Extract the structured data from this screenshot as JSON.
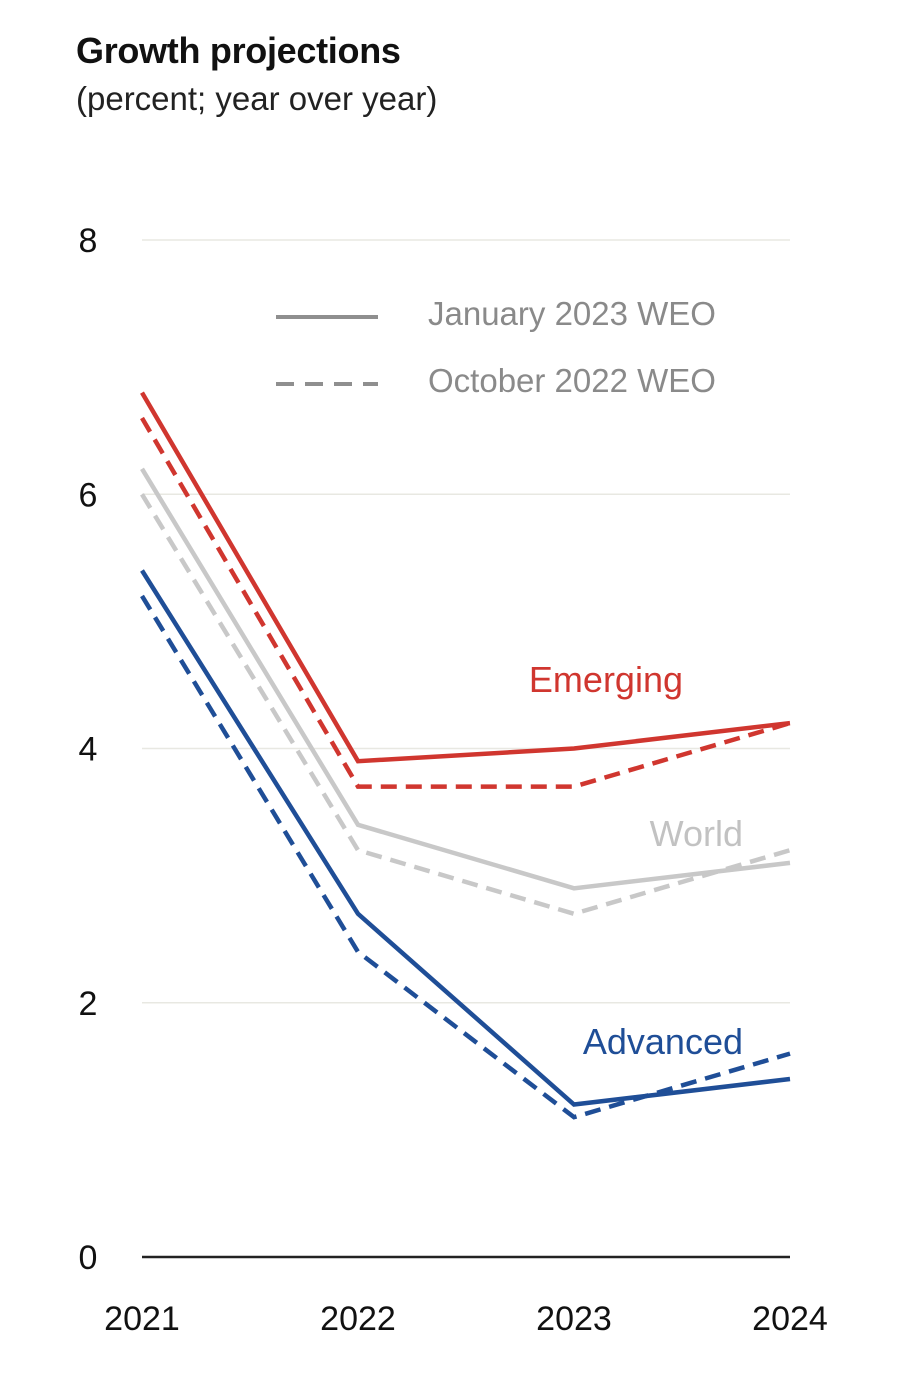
{
  "chart_data": {
    "type": "line",
    "title": "Growth projections",
    "subtitle": "(percent; year over year)",
    "xlabel": "",
    "ylabel": "",
    "x": [
      "2021",
      "2022",
      "2023",
      "2024"
    ],
    "ylim": [
      0,
      8
    ],
    "yticks": [
      0,
      2,
      4,
      6,
      8
    ],
    "grid": true,
    "legend": {
      "placement": "top-right",
      "entries": [
        {
          "label": "January 2023 WEO",
          "style": "solid"
        },
        {
          "label": "October 2022 WEO",
          "style": "dashed"
        }
      ]
    },
    "series": [
      {
        "name": "Emerging",
        "vintage": "January 2023 WEO",
        "style": "solid",
        "color": "#d0362f",
        "values": [
          6.8,
          3.9,
          4.0,
          4.2
        ]
      },
      {
        "name": "Emerging",
        "vintage": "October 2022 WEO",
        "style": "dashed",
        "color": "#d0362f",
        "values": [
          6.6,
          3.7,
          3.7,
          4.2
        ]
      },
      {
        "name": "World",
        "vintage": "January 2023 WEO",
        "style": "solid",
        "color": "#c8c8c8",
        "values": [
          6.2,
          3.4,
          2.9,
          3.1
        ]
      },
      {
        "name": "World",
        "vintage": "October 2022 WEO",
        "style": "dashed",
        "color": "#c8c8c8",
        "values": [
          6.0,
          3.2,
          2.7,
          3.2
        ]
      },
      {
        "name": "Advanced",
        "vintage": "January 2023 WEO",
        "style": "solid",
        "color": "#1f4e97",
        "values": [
          5.4,
          2.7,
          1.2,
          1.4
        ]
      },
      {
        "name": "Advanced",
        "vintage": "October 2022 WEO",
        "style": "dashed",
        "color": "#1f4e97",
        "values": [
          5.2,
          2.4,
          1.1,
          1.6
        ]
      }
    ],
    "annotations": [
      {
        "text": "Emerging",
        "color": "#d0362f"
      },
      {
        "text": "World",
        "color": "#c2c2c2"
      },
      {
        "text": "Advanced",
        "color": "#1f4e97"
      }
    ]
  }
}
